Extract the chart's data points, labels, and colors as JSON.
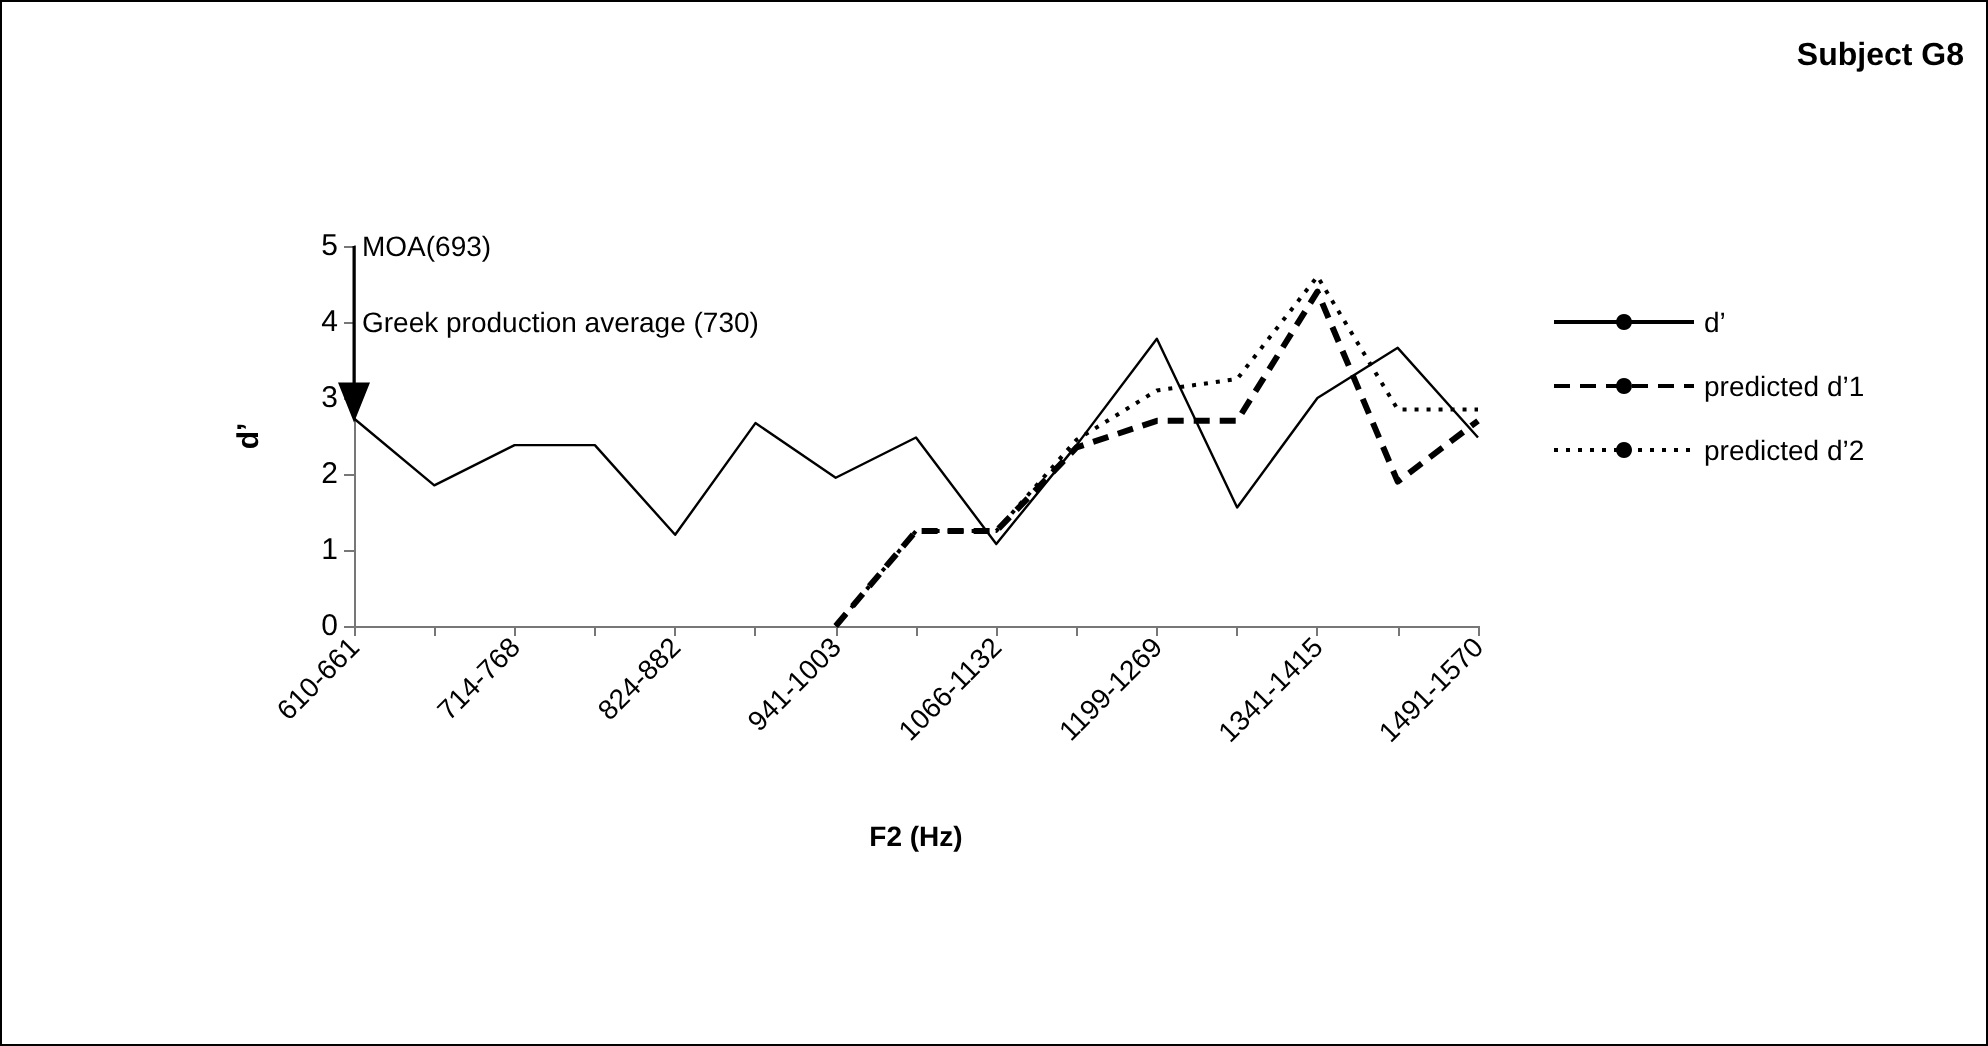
{
  "chart_data": {
    "type": "line",
    "title": "Subject G8",
    "xlabel": "F2 (Hz)",
    "ylabel": "d’",
    "categories": [
      "610-661",
      null,
      "714-768",
      null,
      "824-882",
      null,
      "941-1003",
      null,
      "1066-1132",
      null,
      "1199-1269",
      null,
      "1341-1415",
      null,
      "1491-1570"
    ],
    "series": [
      {
        "name": "d’",
        "color": "#000000",
        "line_style": "solid",
        "values": [
          2.73,
          1.85,
          2.38,
          2.38,
          1.2,
          2.67,
          1.95,
          2.48,
          1.08,
          2.38,
          3.78,
          1.56,
          3.0,
          3.66,
          2.48
        ]
      },
      {
        "name": "predicted d’1",
        "color": "#000000",
        "line_style": "dashed",
        "values": [
          null,
          null,
          null,
          null,
          null,
          null,
          0,
          1.25,
          1.25,
          2.35,
          2.7,
          2.7,
          4.4,
          1.9,
          2.7
        ]
      },
      {
        "name": "predicted d’2",
        "color": "#000000",
        "line_style": "dotted",
        "values": [
          null,
          null,
          null,
          null,
          null,
          null,
          0,
          1.25,
          1.25,
          2.45,
          3.1,
          3.25,
          4.6,
          2.85,
          2.85
        ]
      }
    ],
    "annotations": [
      "MOA(693)",
      "Greek production average (730)"
    ],
    "ylim": [
      0,
      5
    ],
    "yticks": [
      0,
      1,
      2,
      3,
      4,
      5
    ],
    "grid": false,
    "legend": "right",
    "marker": "none"
  }
}
